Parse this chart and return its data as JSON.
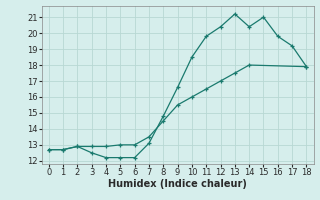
{
  "xlabel": "Humidex (Indice chaleur)",
  "xlim": [
    -0.5,
    18.5
  ],
  "ylim": [
    11.8,
    21.7
  ],
  "xticks": [
    0,
    1,
    2,
    3,
    4,
    5,
    6,
    7,
    8,
    9,
    10,
    11,
    12,
    13,
    14,
    15,
    16,
    17,
    18
  ],
  "yticks": [
    12,
    13,
    14,
    15,
    16,
    17,
    18,
    19,
    20,
    21
  ],
  "line_color": "#1a7a6e",
  "bg_color": "#d6eeec",
  "grid_color": "#b8d8d4",
  "line1_x": [
    0,
    1,
    2,
    3,
    4,
    5,
    6,
    7,
    8,
    9,
    10,
    11,
    12,
    13,
    14,
    15,
    16,
    17,
    18
  ],
  "line1_y": [
    12.7,
    12.7,
    12.9,
    12.5,
    12.2,
    12.2,
    12.2,
    13.1,
    14.8,
    16.6,
    18.5,
    19.8,
    20.4,
    21.2,
    20.4,
    21.0,
    19.8,
    19.2,
    17.9
  ],
  "line2_x": [
    0,
    1,
    2,
    3,
    4,
    5,
    6,
    7,
    8,
    9,
    10,
    11,
    12,
    13,
    14,
    18
  ],
  "line2_y": [
    12.7,
    12.7,
    12.9,
    12.9,
    12.9,
    13.0,
    13.0,
    13.5,
    14.5,
    15.5,
    16.0,
    16.5,
    17.0,
    17.5,
    18.0,
    17.9
  ],
  "tick_fontsize": 6,
  "xlabel_fontsize": 7,
  "tick_color": "#2a2a2a",
  "spine_color": "#888888"
}
